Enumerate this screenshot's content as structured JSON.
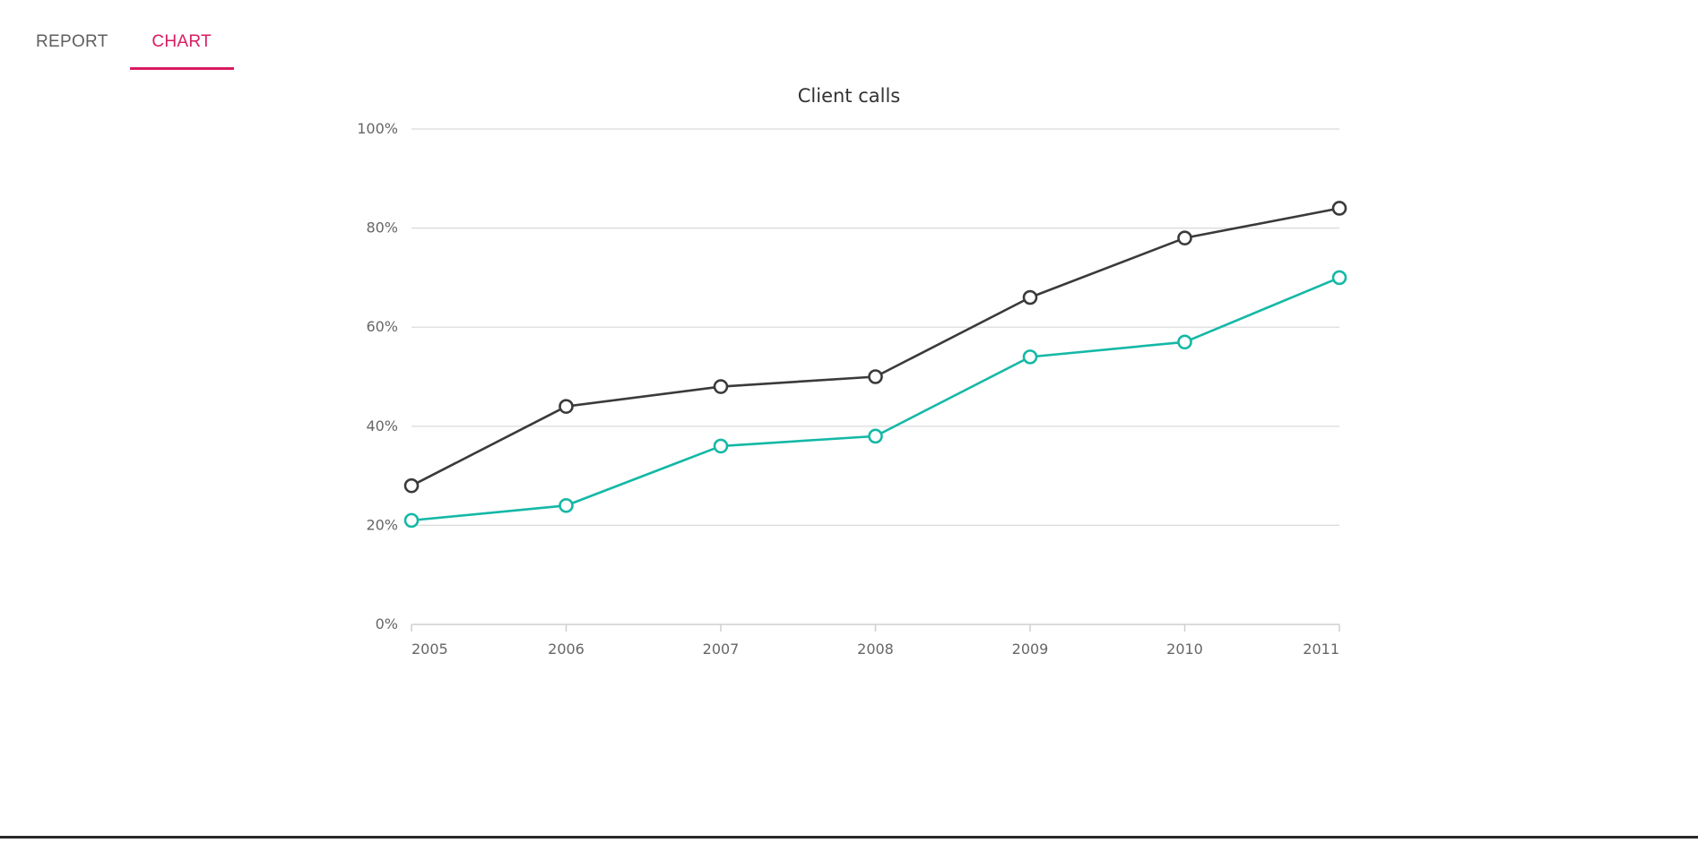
{
  "tabs": [
    {
      "label": "REPORT",
      "active": false
    },
    {
      "label": "CHART",
      "active": true
    }
  ],
  "colors": {
    "accent": "#d81b60",
    "active_tab_text": "#d81b60",
    "inactive_tab_text": "#5f5f5f"
  },
  "chart_data": {
    "type": "line",
    "title": "Client calls",
    "xlabel": "",
    "ylabel": "",
    "x": [
      "2005",
      "2006",
      "2007",
      "2008",
      "2009",
      "2010",
      "2011"
    ],
    "yticks": [
      "0%",
      "20%",
      "40%",
      "60%",
      "80%",
      "100%"
    ],
    "ylim": [
      0,
      100
    ],
    "grid": true,
    "legend": "none",
    "series": [
      {
        "color": "#3a3a3a",
        "values": [
          28,
          44,
          48,
          50,
          66,
          78,
          84
        ]
      },
      {
        "color": "#14b8a6",
        "values": [
          21,
          24,
          36,
          38,
          54,
          57,
          70
        ]
      }
    ]
  }
}
